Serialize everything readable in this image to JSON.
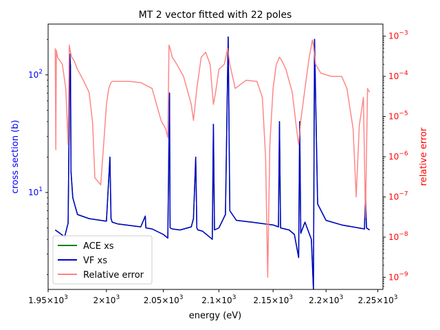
{
  "chart_data": {
    "type": "line",
    "title": "MT 2 vector fitted with 22 poles",
    "xlabel": "energy (eV)",
    "ylabel_left": "cross section (b)",
    "ylabel_right": "relative error",
    "x_scale": "log",
    "y_left_scale": "log",
    "y_right_scale": "log",
    "xlim": [
      1950,
      2255
    ],
    "ylim_left": [
      1.5,
      270
    ],
    "ylim_right": [
      5e-10,
      0.002
    ],
    "x_ticks": [
      {
        "value": 1950,
        "mant": "1.95",
        "exp": "3"
      },
      {
        "value": 2000,
        "mant": "2",
        "exp": "3"
      },
      {
        "value": 2050,
        "mant": "2.05",
        "exp": "3"
      },
      {
        "value": 2100,
        "mant": "2.1",
        "exp": "3"
      },
      {
        "value": 2150,
        "mant": "2.15",
        "exp": "3"
      },
      {
        "value": 2200,
        "mant": "2.2",
        "exp": "3"
      },
      {
        "value": 2250,
        "mant": "2.25",
        "exp": "3"
      }
    ],
    "y_left_ticks": [
      {
        "value": 10,
        "base": "10",
        "exp": "1"
      },
      {
        "value": 100,
        "base": "10",
        "exp": "2"
      }
    ],
    "y_right_ticks": [
      {
        "value": 1e-09,
        "base": "10",
        "exp": "−9"
      },
      {
        "value": 1e-08,
        "base": "10",
        "exp": "−8"
      },
      {
        "value": 1e-07,
        "base": "10",
        "exp": "−7"
      },
      {
        "value": 1e-06,
        "base": "10",
        "exp": "−6"
      },
      {
        "value": 1e-05,
        "base": "10",
        "exp": "−5"
      },
      {
        "value": 0.0001,
        "base": "10",
        "exp": "−4"
      },
      {
        "value": 0.001,
        "base": "10",
        "exp": "−3"
      }
    ],
    "legend_position": "lower-left",
    "series": [
      {
        "name": "ACE xs",
        "axis": "left",
        "color": "#008000",
        "x": [
          1956,
          1960,
          1964,
          1967,
          1968.5,
          1969,
          1969.5,
          1971,
          1975,
          1985,
          2000,
          2003,
          2004,
          2005,
          2010,
          2030,
          2034,
          2034.5,
          2040,
          2050,
          2054,
          2055.5,
          2056,
          2058,
          2065,
          2075,
          2077,
          2079,
          2080,
          2081,
          2085,
          2090,
          2094,
          2095,
          2096,
          2100,
          2106,
          2108.5,
          2110,
          2116,
          2130,
          2150,
          2155,
          2156,
          2157,
          2165,
          2170,
          2174,
          2175,
          2176,
          2180,
          2186,
          2188,
          2189,
          2192,
          2200,
          2215,
          2237,
          2238,
          2239,
          2242
        ],
        "y": [
          4.8,
          4.5,
          4.2,
          5.5,
          150,
          120,
          15,
          9,
          6.5,
          6.0,
          5.7,
          20,
          6,
          5.6,
          5.4,
          5.1,
          6.3,
          5.0,
          4.9,
          4.4,
          4.1,
          70,
          5.0,
          4.9,
          4.8,
          5.1,
          6.0,
          20,
          5.0,
          4.8,
          4.7,
          4.3,
          4.0,
          38,
          4.8,
          5.0,
          6.5,
          210,
          7,
          5.8,
          5.6,
          5.3,
          5.1,
          40,
          5.0,
          4.8,
          4.4,
          2.8,
          40,
          4.5,
          5.6,
          4.0,
          1.5,
          200,
          8,
          5.8,
          5.3,
          4.9,
          9.5,
          5,
          4.8
        ]
      },
      {
        "name": "VF xs",
        "axis": "left",
        "color": "#0000cc",
        "x": [
          1956,
          1960,
          1964,
          1967,
          1968.5,
          1969,
          1969.5,
          1971,
          1975,
          1985,
          2000,
          2003,
          2004,
          2005,
          2010,
          2030,
          2034,
          2034.5,
          2040,
          2050,
          2054,
          2055.5,
          2056,
          2058,
          2065,
          2075,
          2077,
          2079,
          2080,
          2081,
          2085,
          2090,
          2094,
          2095,
          2096,
          2100,
          2106,
          2108.5,
          2110,
          2116,
          2130,
          2150,
          2155,
          2156,
          2157,
          2165,
          2170,
          2174,
          2175,
          2176,
          2180,
          2186,
          2188,
          2189,
          2192,
          2200,
          2215,
          2237,
          2238,
          2239,
          2242
        ],
        "y": [
          4.8,
          4.5,
          4.2,
          5.5,
          150,
          120,
          15,
          9,
          6.5,
          6.0,
          5.7,
          20,
          6,
          5.6,
          5.4,
          5.1,
          6.3,
          5.0,
          4.9,
          4.4,
          4.1,
          70,
          5.0,
          4.9,
          4.8,
          5.1,
          6.0,
          20,
          5.0,
          4.8,
          4.7,
          4.3,
          4.0,
          38,
          4.8,
          5.0,
          6.5,
          210,
          7,
          5.8,
          5.6,
          5.3,
          5.1,
          40,
          5.0,
          4.8,
          4.4,
          2.8,
          40,
          4.5,
          5.6,
          4.0,
          1.5,
          200,
          8,
          5.8,
          5.3,
          4.9,
          9.5,
          5,
          4.8
        ]
      },
      {
        "name": "Relative error",
        "axis": "right",
        "color": "#ff8080",
        "x": [
          1956,
          1956.5,
          1957,
          1958,
          1962,
          1965,
          1967,
          1968,
          1969,
          1970,
          1972,
          1975,
          1980,
          1985,
          1988,
          1990,
          1995,
          1998,
          2000,
          2002,
          2003,
          2004,
          2005,
          2008,
          2012,
          2020,
          2030,
          2040,
          2048,
          2052,
          2054,
          2055,
          2056,
          2058,
          2062,
          2068,
          2072,
          2075,
          2077,
          2080,
          2084,
          2088,
          2092,
          2095,
          2097,
          2100,
          2105,
          2108,
          2110,
          2115,
          2125,
          2135,
          2140,
          2143,
          2145,
          2147,
          2150,
          2153,
          2156,
          2158,
          2162,
          2168,
          2172,
          2174,
          2176,
          2180,
          2184,
          2187,
          2188,
          2190,
          2195,
          2205,
          2215,
          2220,
          2226,
          2229,
          2232,
          2236,
          2238,
          2240,
          2242
        ],
        "y": [
          0.0005,
          1.5e-06,
          0.00045,
          0.0003,
          0.0002,
          5e-05,
          2e-06,
          0.0006,
          0.0004,
          0.0003,
          0.00025,
          0.00015,
          8e-05,
          4e-05,
          7e-06,
          3e-07,
          2e-07,
          3e-06,
          2e-05,
          5e-05,
          6e-05,
          7e-05,
          7.5e-05,
          7.5e-05,
          7.5e-05,
          7.5e-05,
          7e-05,
          5e-05,
          8e-06,
          5e-06,
          3e-06,
          0.0006,
          0.0005,
          0.0003,
          0.0002,
          0.0001,
          4e-05,
          2e-05,
          8e-06,
          5e-05,
          0.0003,
          0.0004,
          0.0002,
          2e-05,
          4e-05,
          0.00015,
          0.0002,
          0.0005,
          0.0002,
          5e-05,
          8e-05,
          7.5e-05,
          3e-05,
          1e-06,
          1e-09,
          2e-06,
          5e-05,
          0.0002,
          0.0003,
          0.00025,
          0.00015,
          4e-05,
          5e-06,
          2e-06,
          8e-06,
          5e-05,
          0.0003,
          0.0008,
          0.0006,
          0.0002,
          0.00012,
          0.0001,
          0.0001,
          5e-05,
          5e-06,
          1e-07,
          6e-06,
          3e-05,
          3e-08,
          5e-05,
          4e-05
        ]
      }
    ]
  }
}
